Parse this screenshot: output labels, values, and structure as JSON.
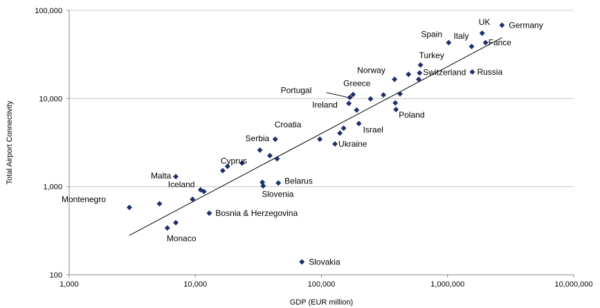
{
  "chart_data": {
    "type": "scatter",
    "title": "",
    "xlabel": "GDP (EUR million)",
    "ylabel": "Total Airport Connectivity",
    "x_scale": "log",
    "y_scale": "log",
    "xlim": [
      1000,
      10000000
    ],
    "ylim": [
      100,
      100000
    ],
    "x_ticks": [
      "1,000",
      "10,000",
      "100,000",
      "1,000,000",
      "10,000,000"
    ],
    "y_ticks": [
      "100",
      "1,000",
      "10,000",
      "100,000"
    ],
    "grid": "horizontal",
    "legend": "none",
    "marker_color": "#1f2f6b",
    "trendline": {
      "x": [
        3000,
        2700000
      ],
      "y": [
        280,
        49000
      ]
    },
    "points": [
      {
        "x": 3000,
        "y": 580,
        "label": "Montenegro"
      },
      {
        "x": 5200,
        "y": 640,
        "label": ""
      },
      {
        "x": 6000,
        "y": 340,
        "label": "Monaco"
      },
      {
        "x": 7000,
        "y": 390,
        "label": ""
      },
      {
        "x": 7000,
        "y": 1300,
        "label": "Malta"
      },
      {
        "x": 9500,
        "y": 720,
        "label": ""
      },
      {
        "x": 11000,
        "y": 920,
        "label": "Iceland"
      },
      {
        "x": 11700,
        "y": 880,
        "label": ""
      },
      {
        "x": 12900,
        "y": 500,
        "label": "Bosnia & Herzegovina"
      },
      {
        "x": 16500,
        "y": 1520,
        "label": "Cyprus"
      },
      {
        "x": 18000,
        "y": 1700,
        "label": ""
      },
      {
        "x": 23500,
        "y": 1850,
        "label": ""
      },
      {
        "x": 32500,
        "y": 2600,
        "label": "Serbia"
      },
      {
        "x": 34000,
        "y": 1120,
        "label": ""
      },
      {
        "x": 34500,
        "y": 1020,
        "label": "Slovenia"
      },
      {
        "x": 39000,
        "y": 2250,
        "label": ""
      },
      {
        "x": 43000,
        "y": 3450,
        "label": "Croatia"
      },
      {
        "x": 44500,
        "y": 2070,
        "label": ""
      },
      {
        "x": 45500,
        "y": 1100,
        "label": "Belarus"
      },
      {
        "x": 70000,
        "y": 140,
        "label": "Slovakia"
      },
      {
        "x": 97000,
        "y": 3450,
        "label": ""
      },
      {
        "x": 128000,
        "y": 3050,
        "label": "Ukraine"
      },
      {
        "x": 140000,
        "y": 4050,
        "label": ""
      },
      {
        "x": 150000,
        "y": 4600,
        "label": ""
      },
      {
        "x": 165000,
        "y": 8800,
        "label": "Ireland"
      },
      {
        "x": 168000,
        "y": 10300,
        "label": ""
      },
      {
        "x": 178000,
        "y": 11100,
        "label": "Greece"
      },
      {
        "x": 190000,
        "y": 7400,
        "label": ""
      },
      {
        "x": 198000,
        "y": 5200,
        "label": "Israel"
      },
      {
        "x": 245000,
        "y": 9900,
        "label": ""
      },
      {
        "x": 310000,
        "y": 11000,
        "label": ""
      },
      {
        "x": 380000,
        "y": 16500,
        "label": "Norway"
      },
      {
        "x": 385000,
        "y": 8900,
        "label": ""
      },
      {
        "x": 390000,
        "y": 7500,
        "label": "Poland"
      },
      {
        "x": 420000,
        "y": 11300,
        "label": ""
      },
      {
        "x": 490000,
        "y": 18800,
        "label": ""
      },
      {
        "x": 590000,
        "y": 16500,
        "label": ""
      },
      {
        "x": 600000,
        "y": 19500,
        "label": "Switzerland"
      },
      {
        "x": 610000,
        "y": 24000,
        "label": "Turkey"
      },
      {
        "x": 1020000,
        "y": 43000,
        "label": "Spain"
      },
      {
        "x": 1550000,
        "y": 39000,
        "label": "Italy"
      },
      {
        "x": 1570000,
        "y": 20000,
        "label": "Russia"
      },
      {
        "x": 1880000,
        "y": 55000,
        "label": "UK"
      },
      {
        "x": 2000000,
        "y": 43000,
        "label": "Fance"
      },
      {
        "x": 2700000,
        "y": 68000,
        "label": "Germany"
      }
    ],
    "annotations": [
      {
        "text": "Portugal",
        "target": {
          "x": 168000,
          "y": 10300
        }
      }
    ]
  }
}
